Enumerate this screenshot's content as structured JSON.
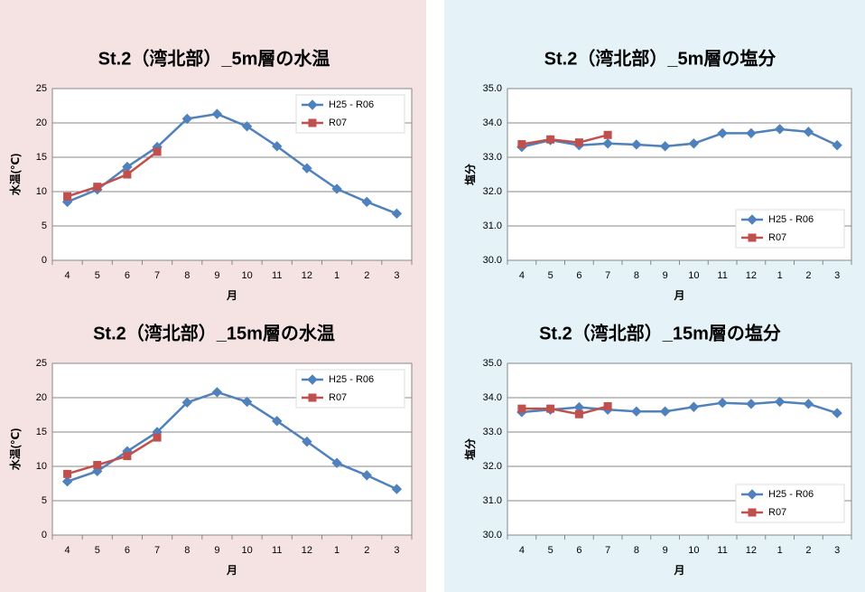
{
  "chart_data": [
    {
      "type": "line",
      "title": "St.2（湾北部）_5m層の水温",
      "x_label": "月",
      "y_label": "水温(℃)",
      "categories": [
        "4",
        "5",
        "6",
        "7",
        "8",
        "9",
        "10",
        "11",
        "12",
        "1",
        "2",
        "3"
      ],
      "series": [
        {
          "name": "H25 - R06",
          "color": "#4f81bd",
          "marker": "diamond",
          "values": [
            8.5,
            10.3,
            13.6,
            16.5,
            20.6,
            21.3,
            19.5,
            16.6,
            13.4,
            10.4,
            8.5,
            6.8
          ]
        },
        {
          "name": "R07",
          "color": "#c0504d",
          "marker": "square",
          "values": [
            9.3,
            10.7,
            12.5,
            15.8,
            null,
            null,
            null,
            null,
            null,
            null,
            null,
            null
          ]
        }
      ],
      "ylim": [
        0,
        25
      ],
      "yticks": [
        0,
        5,
        10,
        15,
        20,
        25
      ],
      "grid": true,
      "legend": "upper right"
    },
    {
      "type": "line",
      "title": "St.2（湾北部）_5m層の塩分",
      "x_label": "月",
      "y_label": "塩分",
      "categories": [
        "4",
        "5",
        "6",
        "7",
        "8",
        "9",
        "10",
        "11",
        "12",
        "1",
        "2",
        "3"
      ],
      "series": [
        {
          "name": "H25 - R06",
          "color": "#4f81bd",
          "marker": "diamond",
          "values": [
            33.3,
            33.5,
            33.35,
            33.4,
            33.37,
            33.32,
            33.4,
            33.7,
            33.7,
            33.82,
            33.74,
            33.35
          ]
        },
        {
          "name": "R07",
          "color": "#c0504d",
          "marker": "square",
          "values": [
            33.38,
            33.52,
            33.43,
            33.65,
            null,
            null,
            null,
            null,
            null,
            null,
            null,
            null
          ]
        }
      ],
      "ylim": [
        30,
        35
      ],
      "yticks": [
        {
          "value": 30,
          "label": "30.0"
        },
        {
          "value": 31,
          "label": "31.0"
        },
        {
          "value": 32,
          "label": "32.0"
        },
        {
          "value": 33,
          "label": "33.0"
        },
        {
          "value": 34,
          "label": "34.0"
        },
        {
          "value": 35,
          "label": "35.0"
        }
      ],
      "grid": true,
      "legend": "lower right"
    },
    {
      "type": "line",
      "title": "St.2（湾北部）_15m層の水温",
      "x_label": "月",
      "y_label": "水温(℃)",
      "categories": [
        "4",
        "5",
        "6",
        "7",
        "8",
        "9",
        "10",
        "11",
        "12",
        "1",
        "2",
        "3"
      ],
      "series": [
        {
          "name": "H25 - R06",
          "color": "#4f81bd",
          "marker": "diamond",
          "values": [
            7.8,
            9.3,
            12.2,
            15.0,
            19.3,
            20.8,
            19.4,
            16.6,
            13.6,
            10.5,
            8.7,
            6.7
          ]
        },
        {
          "name": "R07",
          "color": "#c0504d",
          "marker": "square",
          "values": [
            8.9,
            10.2,
            11.5,
            14.2,
            null,
            null,
            null,
            null,
            null,
            null,
            null,
            null
          ]
        }
      ],
      "ylim": [
        0,
        25
      ],
      "yticks": [
        0,
        5,
        10,
        15,
        20,
        25
      ],
      "grid": true,
      "legend": "upper right"
    },
    {
      "type": "line",
      "title": "St.2（湾北部）_15m層の塩分",
      "x_label": "月",
      "y_label": "塩分",
      "categories": [
        "4",
        "5",
        "6",
        "7",
        "8",
        "9",
        "10",
        "11",
        "12",
        "1",
        "2",
        "3"
      ],
      "series": [
        {
          "name": "H25 - R06",
          "color": "#4f81bd",
          "marker": "diamond",
          "values": [
            33.58,
            33.65,
            33.72,
            33.65,
            33.6,
            33.6,
            33.73,
            33.85,
            33.82,
            33.88,
            33.82,
            33.55
          ]
        },
        {
          "name": "R07",
          "color": "#c0504d",
          "marker": "square",
          "values": [
            33.68,
            33.68,
            33.52,
            33.75,
            null,
            null,
            null,
            null,
            null,
            null,
            null,
            null
          ]
        }
      ],
      "ylim": [
        30,
        35
      ],
      "yticks": [
        {
          "value": 30,
          "label": "30.0"
        },
        {
          "value": 31,
          "label": "31.0"
        },
        {
          "value": 32,
          "label": "32.0"
        },
        {
          "value": 33,
          "label": "33.0"
        },
        {
          "value": 34,
          "label": "34.0"
        },
        {
          "value": 35,
          "label": "35.0"
        }
      ],
      "grid": true,
      "legend": "lower right"
    }
  ]
}
